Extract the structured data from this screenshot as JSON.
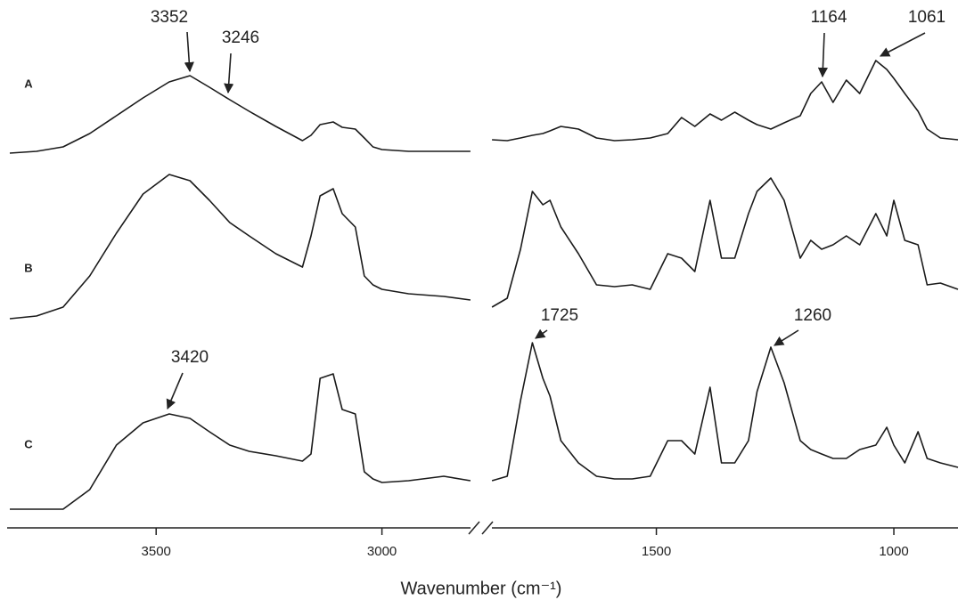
{
  "chart_data": {
    "type": "line",
    "xlabel": "Wavenumber (cm⁻¹)",
    "xlim": [
      3830,
      865
    ],
    "xbreak": [
      2790,
      1850
    ],
    "xticks": [
      3500,
      3000,
      1500,
      1000
    ],
    "ylim": [
      0,
      6
    ],
    "grid": false,
    "x": [
      3824,
      3765,
      3706,
      3647,
      3588,
      3529,
      3471,
      3425,
      3382,
      3337,
      3294,
      3235,
      3176,
      3157,
      3137,
      3108,
      3088,
      3059,
      3039,
      3020,
      3000,
      2941,
      2863,
      2804,
      1846,
      1814,
      1786,
      1761,
      1739,
      1724,
      1701,
      1664,
      1626,
      1588,
      1551,
      1513,
      1476,
      1447,
      1419,
      1387,
      1363,
      1335,
      1306,
      1288,
      1259,
      1231,
      1197,
      1175,
      1152,
      1128,
      1100,
      1072,
      1038,
      1015,
      1000,
      977,
      949,
      930,
      902,
      865
    ],
    "series": [
      {
        "name": "A",
        "color": "#1a1a1a",
        "values": [
          4.28,
          4.3,
          4.35,
          4.5,
          4.7,
          4.9,
          5.08,
          5.15,
          5.02,
          4.88,
          4.75,
          4.58,
          4.42,
          4.48,
          4.6,
          4.63,
          4.57,
          4.55,
          4.45,
          4.35,
          4.32,
          4.3,
          4.3,
          4.3,
          4.43,
          4.42,
          4.45,
          4.48,
          4.5,
          4.53,
          4.58,
          4.55,
          4.45,
          4.42,
          4.43,
          4.45,
          4.5,
          4.68,
          4.58,
          4.72,
          4.65,
          4.74,
          4.65,
          4.6,
          4.55,
          4.62,
          4.7,
          4.95,
          5.08,
          4.85,
          5.1,
          4.95,
          5.32,
          5.22,
          5.12,
          4.95,
          4.75,
          4.55,
          4.45,
          4.43
        ],
        "annotations": [
          "3352",
          "3246",
          "1164",
          "1061"
        ]
      },
      {
        "name": "B",
        "color": "#1a1a1a",
        "values": [
          2.42,
          2.45,
          2.55,
          2.9,
          3.38,
          3.82,
          4.04,
          3.97,
          3.75,
          3.5,
          3.35,
          3.15,
          3.0,
          3.35,
          3.8,
          3.88,
          3.6,
          3.45,
          2.9,
          2.8,
          2.75,
          2.7,
          2.67,
          2.63,
          2.55,
          2.65,
          3.2,
          3.85,
          3.7,
          3.75,
          3.45,
          3.15,
          2.8,
          2.78,
          2.8,
          2.75,
          3.15,
          3.1,
          2.95,
          3.75,
          3.1,
          3.1,
          3.6,
          3.85,
          4.0,
          3.75,
          3.1,
          3.3,
          3.2,
          3.25,
          3.35,
          3.25,
          3.6,
          3.35,
          3.75,
          3.3,
          3.25,
          2.8,
          2.82,
          2.75
        ]
      },
      {
        "name": "C",
        "color": "#1a1a1a",
        "values": [
          0.28,
          0.28,
          0.28,
          0.5,
          1.0,
          1.25,
          1.35,
          1.3,
          1.15,
          1.0,
          0.93,
          0.88,
          0.82,
          0.9,
          1.75,
          1.8,
          1.4,
          1.35,
          0.7,
          0.62,
          0.58,
          0.6,
          0.65,
          0.6,
          0.6,
          0.65,
          1.5,
          2.15,
          1.75,
          1.55,
          1.05,
          0.8,
          0.65,
          0.62,
          0.62,
          0.65,
          1.05,
          1.05,
          0.9,
          1.65,
          0.8,
          0.8,
          1.05,
          1.6,
          2.1,
          1.7,
          1.05,
          0.95,
          0.9,
          0.85,
          0.85,
          0.95,
          1.0,
          1.2,
          1.0,
          0.8,
          1.15,
          0.85,
          0.8,
          0.75
        ],
        "annotations": [
          "1725",
          "1260",
          "3420"
        ]
      }
    ]
  }
}
